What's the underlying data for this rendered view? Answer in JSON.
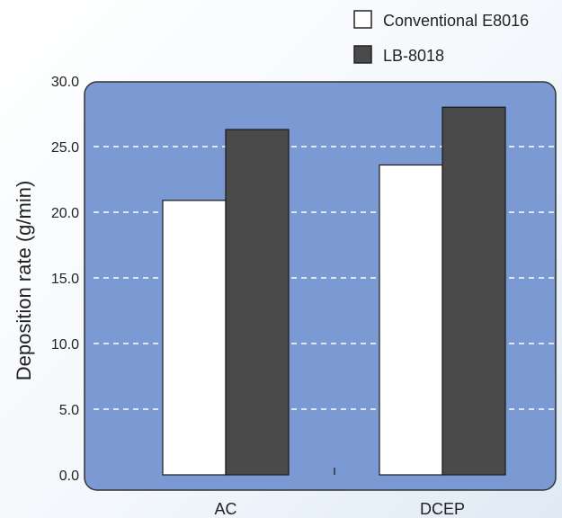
{
  "chart_data": {
    "type": "bar",
    "categories": [
      "AC",
      "DCEP"
    ],
    "series": [
      {
        "name": "Conventional E8016",
        "values": [
          20.9,
          23.6
        ],
        "color": "#ffffff"
      },
      {
        "name": "LB-8018",
        "values": [
          26.3,
          28.0
        ],
        "color": "#4a4a4a"
      }
    ],
    "ylabel": "Deposition rate (g/min)",
    "xlabel": "",
    "ylim": [
      0,
      30
    ],
    "yticks": [
      "0.0",
      "5.0",
      "10.0",
      "15.0",
      "20.0",
      "25.0",
      "30.0"
    ],
    "grid": true,
    "legend_position": "top-right",
    "plot_background": "#7b9ad3"
  }
}
